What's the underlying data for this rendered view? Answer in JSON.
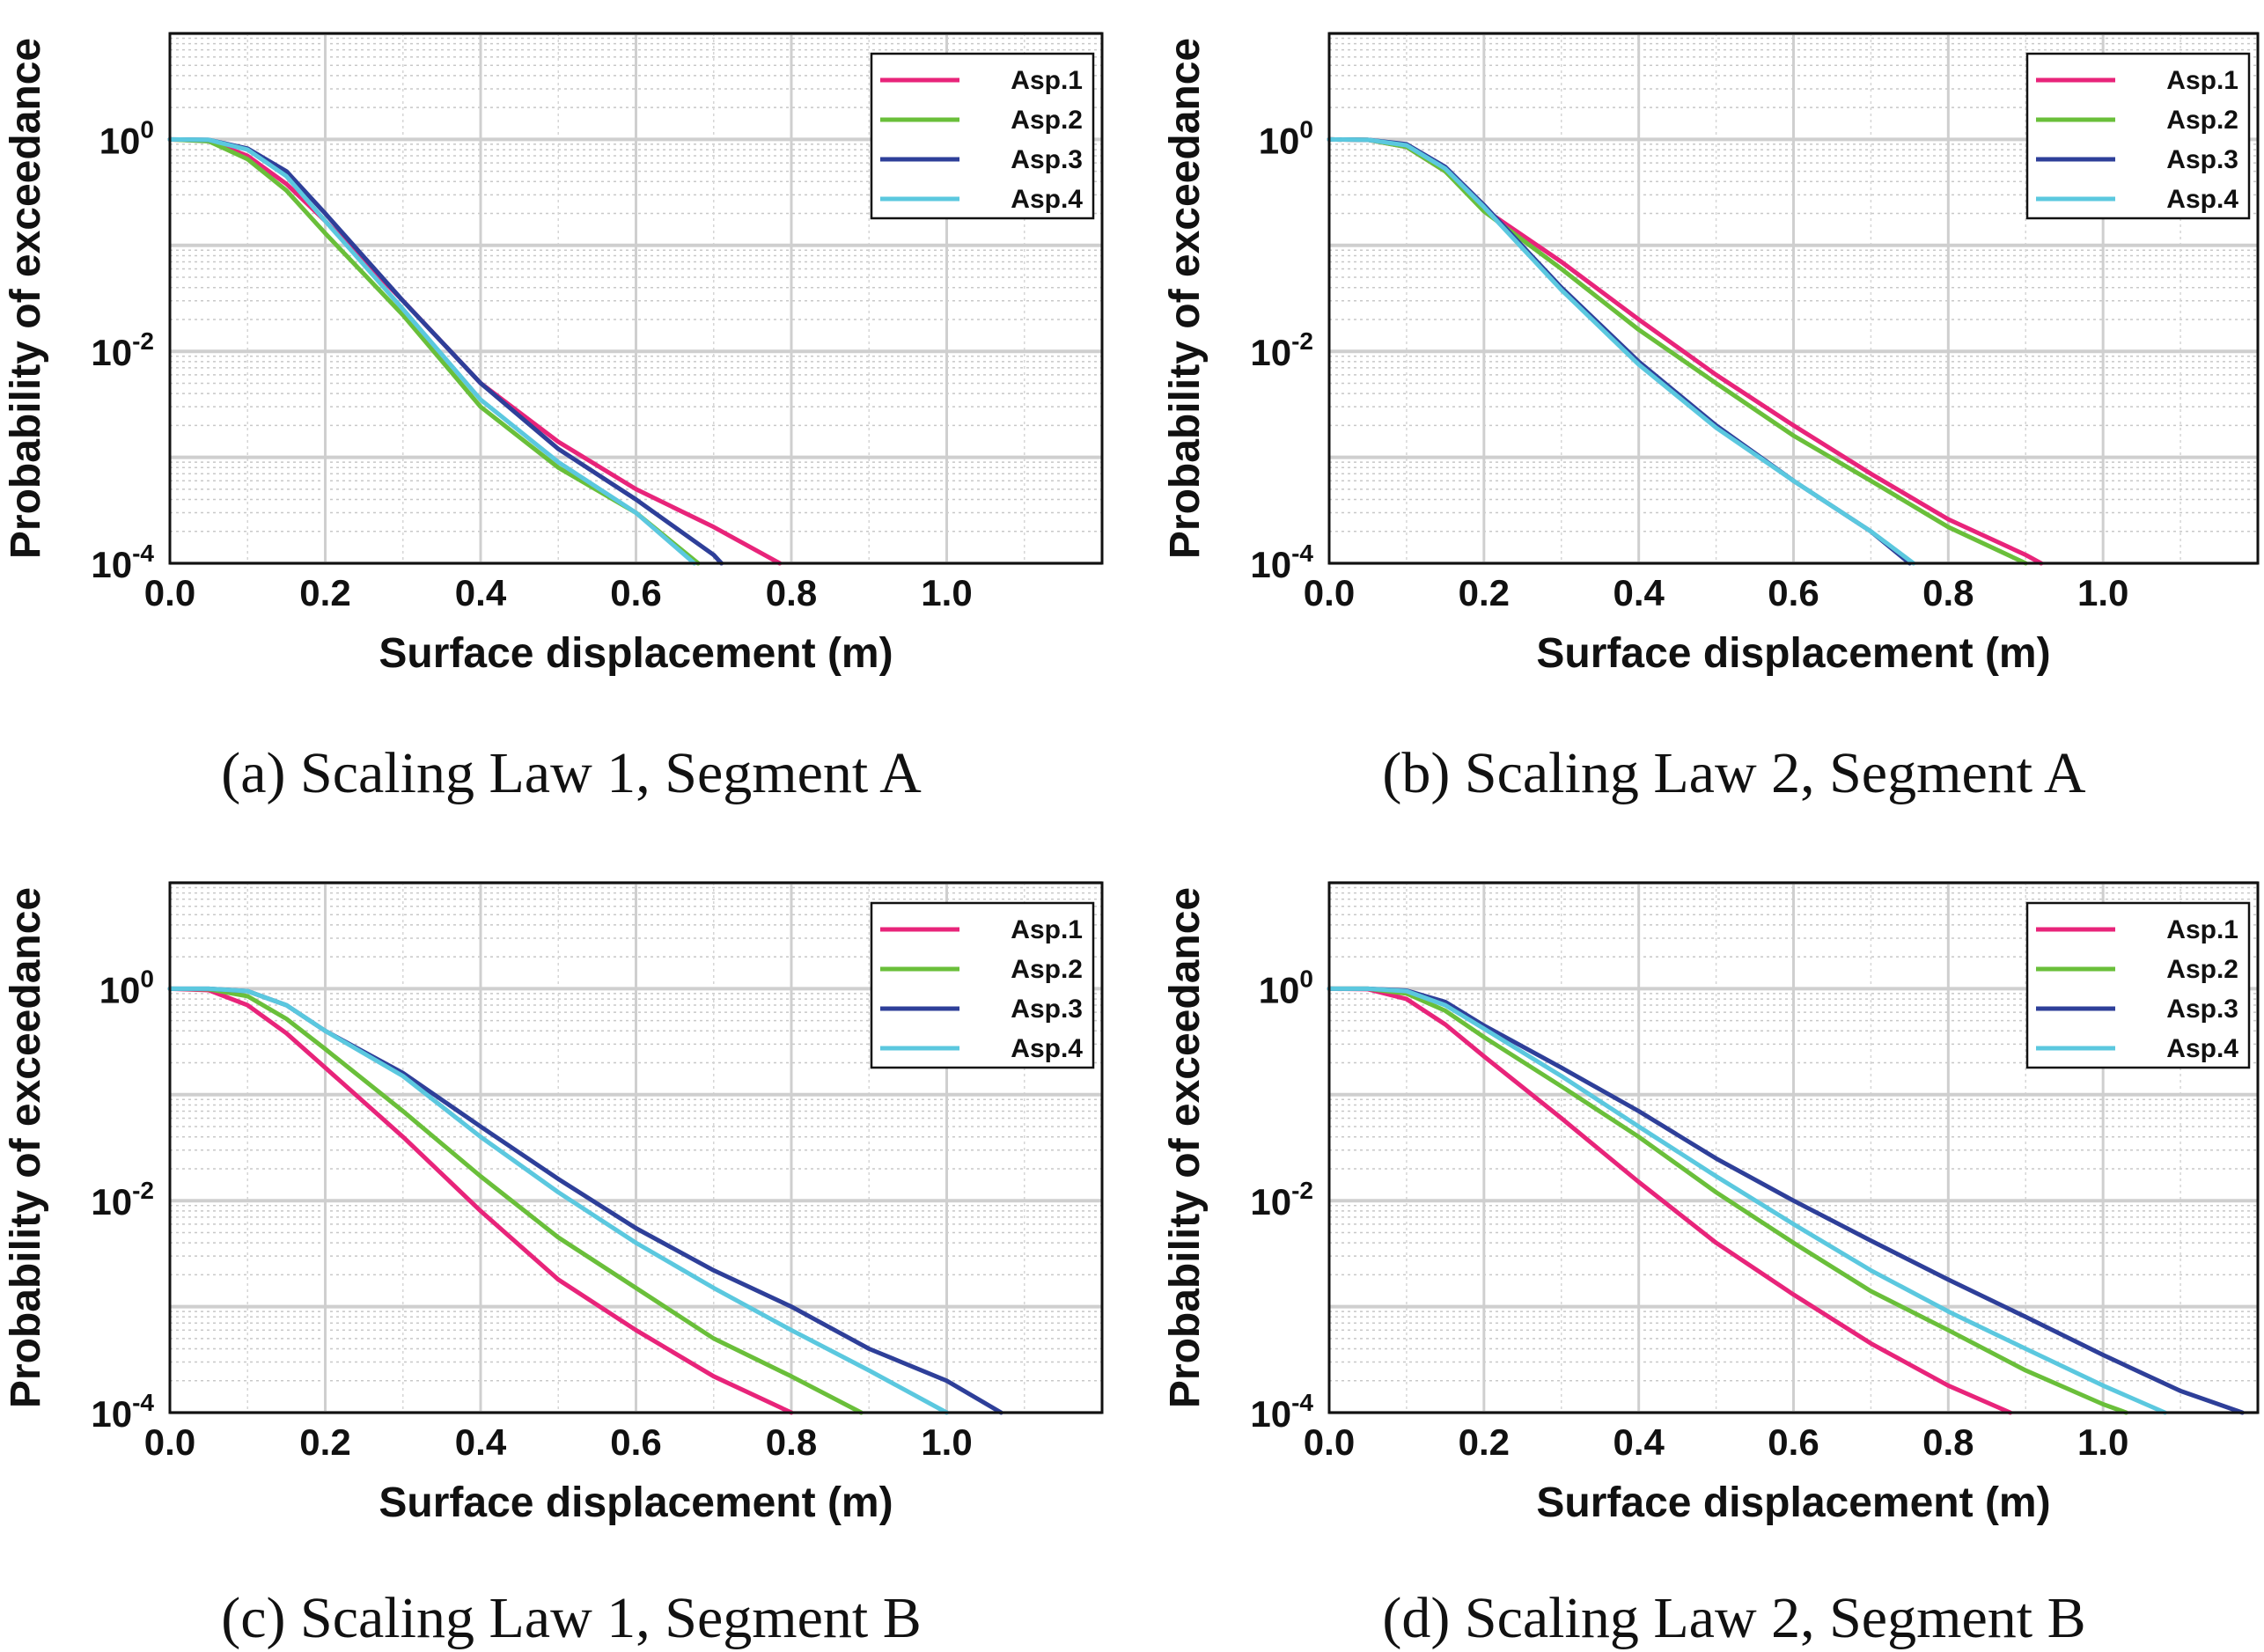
{
  "figure": {
    "captions": [
      "(a) Scaling Law 1, Segment A",
      "(b) Scaling Law 2, Segment A",
      "(c) Scaling Law 1, Segment B",
      "(d) Scaling Law 2, Segment B"
    ]
  },
  "chart_data": [
    {
      "type": "line",
      "panel": "a",
      "caption": "(a) Scaling Law 1, Segment A",
      "xlabel": "Surface displacement (m)",
      "ylabel": "Probability of exceedance",
      "xlim": [
        0,
        1.2
      ],
      "ylim": [
        0.0001,
        10
      ],
      "yscale": "log",
      "xticks": [
        0,
        0.2,
        0.4,
        0.6,
        0.8,
        1.0
      ],
      "xticklabels": [
        "0.0",
        "0.2",
        "0.4",
        "0.6",
        "0.8",
        "1.0"
      ],
      "yticks": [
        {
          "base": "10",
          "exp": "-4",
          "value": 0.0001
        },
        {
          "base": "10",
          "exp": "-2",
          "value": 0.01
        },
        {
          "base": "10",
          "exp": "0",
          "value": 1
        }
      ],
      "grid": true,
      "legend_position": "top-right",
      "series": [
        {
          "name": "Asp.1",
          "color": "#e8247a",
          "x": [
            0,
            0.05,
            0.1,
            0.15,
            0.2,
            0.3,
            0.4,
            0.5,
            0.6,
            0.7,
            0.785
          ],
          "y": [
            1,
            0.97,
            0.7,
            0.38,
            0.17,
            0.03,
            0.005,
            0.0014,
            0.0005,
            0.00022,
            0.0001
          ]
        },
        {
          "name": "Asp.2",
          "color": "#6abf3a",
          "x": [
            0,
            0.05,
            0.1,
            0.15,
            0.2,
            0.3,
            0.4,
            0.5,
            0.6,
            0.68
          ],
          "y": [
            1,
            0.96,
            0.65,
            0.33,
            0.13,
            0.022,
            0.003,
            0.0008,
            0.0003,
            0.0001
          ]
        },
        {
          "name": "Asp.3",
          "color": "#2e3f99",
          "x": [
            0,
            0.05,
            0.1,
            0.15,
            0.2,
            0.3,
            0.4,
            0.5,
            0.6,
            0.7,
            0.71
          ],
          "y": [
            1,
            0.99,
            0.82,
            0.5,
            0.2,
            0.03,
            0.005,
            0.0012,
            0.0004,
            0.00012,
            0.0001
          ]
        },
        {
          "name": "Asp.4",
          "color": "#5bc8df",
          "x": [
            0,
            0.05,
            0.1,
            0.15,
            0.2,
            0.3,
            0.4,
            0.5,
            0.6,
            0.675
          ],
          "y": [
            1,
            0.99,
            0.8,
            0.45,
            0.17,
            0.025,
            0.0035,
            0.0009,
            0.0003,
            0.0001
          ]
        }
      ]
    },
    {
      "type": "line",
      "panel": "b",
      "caption": "(b) Scaling Law 2, Segment A",
      "xlabel": "Surface displacement (m)",
      "ylabel": "Probability of exceedance",
      "xlim": [
        0,
        1.2
      ],
      "ylim": [
        0.0001,
        10
      ],
      "yscale": "log",
      "xticks": [
        0,
        0.2,
        0.4,
        0.6,
        0.8,
        1.0
      ],
      "xticklabels": [
        "0.0",
        "0.2",
        "0.4",
        "0.6",
        "0.8",
        "1.0"
      ],
      "yticks": [
        {
          "base": "10",
          "exp": "-4",
          "value": 0.0001
        },
        {
          "base": "10",
          "exp": "-2",
          "value": 0.01
        },
        {
          "base": "10",
          "exp": "0",
          "value": 1
        }
      ],
      "grid": true,
      "legend_position": "top-right",
      "series": [
        {
          "name": "Asp.1",
          "color": "#e8247a",
          "x": [
            0,
            0.05,
            0.1,
            0.15,
            0.2,
            0.3,
            0.4,
            0.5,
            0.6,
            0.7,
            0.8,
            0.9,
            0.92
          ],
          "y": [
            1,
            0.99,
            0.85,
            0.5,
            0.22,
            0.07,
            0.02,
            0.006,
            0.002,
            0.0007,
            0.00026,
            0.00012,
            0.0001
          ]
        },
        {
          "name": "Asp.2",
          "color": "#6abf3a",
          "x": [
            0,
            0.05,
            0.1,
            0.15,
            0.2,
            0.3,
            0.4,
            0.5,
            0.6,
            0.7,
            0.8,
            0.9
          ],
          "y": [
            1,
            0.99,
            0.85,
            0.5,
            0.21,
            0.06,
            0.016,
            0.005,
            0.0016,
            0.0006,
            0.00022,
            0.0001
          ]
        },
        {
          "name": "Asp.3",
          "color": "#2e3f99",
          "x": [
            0,
            0.05,
            0.1,
            0.15,
            0.2,
            0.3,
            0.4,
            0.5,
            0.6,
            0.7,
            0.75
          ],
          "y": [
            1,
            0.99,
            0.9,
            0.55,
            0.24,
            0.04,
            0.008,
            0.002,
            0.0006,
            0.0002,
            0.0001
          ]
        },
        {
          "name": "Asp.4",
          "color": "#5bc8df",
          "x": [
            0,
            0.05,
            0.1,
            0.15,
            0.2,
            0.3,
            0.4,
            0.5,
            0.6,
            0.7,
            0.755
          ],
          "y": [
            1,
            0.99,
            0.88,
            0.53,
            0.23,
            0.038,
            0.0075,
            0.0019,
            0.0006,
            0.0002,
            0.0001
          ]
        }
      ]
    },
    {
      "type": "line",
      "panel": "c",
      "caption": "(c) Scaling Law 1, Segment B",
      "xlabel": "Surface displacement (m)",
      "ylabel": "Probability of exceedance",
      "xlim": [
        0,
        1.2
      ],
      "ylim": [
        0.0001,
        10
      ],
      "yscale": "log",
      "xticks": [
        0,
        0.2,
        0.4,
        0.6,
        0.8,
        1.0
      ],
      "xticklabels": [
        "0.0",
        "0.2",
        "0.4",
        "0.6",
        "0.8",
        "1.0"
      ],
      "yticks": [
        {
          "base": "10",
          "exp": "-4",
          "value": 0.0001
        },
        {
          "base": "10",
          "exp": "-2",
          "value": 0.01
        },
        {
          "base": "10",
          "exp": "0",
          "value": 1
        }
      ],
      "grid": true,
      "legend_position": "top-right",
      "series": [
        {
          "name": "Asp.1",
          "color": "#e8247a",
          "x": [
            0,
            0.05,
            0.1,
            0.15,
            0.2,
            0.3,
            0.4,
            0.5,
            0.6,
            0.7,
            0.8
          ],
          "y": [
            1,
            0.97,
            0.7,
            0.38,
            0.18,
            0.04,
            0.008,
            0.0018,
            0.0006,
            0.00022,
            0.0001
          ]
        },
        {
          "name": "Asp.2",
          "color": "#6abf3a",
          "x": [
            0,
            0.05,
            0.1,
            0.15,
            0.2,
            0.3,
            0.4,
            0.5,
            0.6,
            0.7,
            0.8,
            0.89
          ],
          "y": [
            1,
            0.99,
            0.85,
            0.52,
            0.27,
            0.07,
            0.017,
            0.0045,
            0.0015,
            0.0005,
            0.00022,
            0.0001
          ]
        },
        {
          "name": "Asp.3",
          "color": "#2e3f99",
          "x": [
            0,
            0.05,
            0.1,
            0.15,
            0.2,
            0.3,
            0.4,
            0.5,
            0.6,
            0.7,
            0.8,
            0.9,
            1.0,
            1.07
          ],
          "y": [
            1,
            1,
            0.95,
            0.7,
            0.4,
            0.16,
            0.05,
            0.016,
            0.0055,
            0.0022,
            0.001,
            0.0004,
            0.0002,
            0.0001
          ]
        },
        {
          "name": "Asp.4",
          "color": "#5bc8df",
          "x": [
            0,
            0.05,
            0.1,
            0.15,
            0.2,
            0.3,
            0.4,
            0.5,
            0.6,
            0.7,
            0.8,
            0.9,
            1.0
          ],
          "y": [
            1,
            1,
            0.95,
            0.7,
            0.4,
            0.15,
            0.04,
            0.012,
            0.004,
            0.0015,
            0.0006,
            0.00025,
            0.0001
          ]
        }
      ]
    },
    {
      "type": "line",
      "panel": "d",
      "caption": "(d) Scaling Law 2, Segment B",
      "xlabel": "Surface displacement (m)",
      "ylabel": "Probability of exceedance",
      "xlim": [
        0,
        1.2
      ],
      "ylim": [
        0.0001,
        10
      ],
      "yscale": "log",
      "xticks": [
        0,
        0.2,
        0.4,
        0.6,
        0.8,
        1.0
      ],
      "xticklabels": [
        "0.0",
        "0.2",
        "0.4",
        "0.6",
        "0.8",
        "1.0"
      ],
      "yticks": [
        {
          "base": "10",
          "exp": "-4",
          "value": 0.0001
        },
        {
          "base": "10",
          "exp": "-2",
          "value": 0.01
        },
        {
          "base": "10",
          "exp": "0",
          "value": 1
        }
      ],
      "grid": true,
      "legend_position": "top-right",
      "series": [
        {
          "name": "Asp.1",
          "color": "#e8247a",
          "x": [
            0,
            0.05,
            0.1,
            0.15,
            0.2,
            0.3,
            0.4,
            0.5,
            0.6,
            0.7,
            0.8,
            0.88
          ],
          "y": [
            1,
            0.99,
            0.8,
            0.46,
            0.23,
            0.06,
            0.015,
            0.004,
            0.0013,
            0.00045,
            0.00018,
            0.0001
          ]
        },
        {
          "name": "Asp.2",
          "color": "#6abf3a",
          "x": [
            0,
            0.05,
            0.1,
            0.15,
            0.2,
            0.3,
            0.4,
            0.5,
            0.6,
            0.7,
            0.8,
            0.9,
            1.0,
            1.03
          ],
          "y": [
            1,
            1,
            0.9,
            0.62,
            0.35,
            0.12,
            0.04,
            0.012,
            0.004,
            0.0014,
            0.0006,
            0.00025,
            0.00012,
            0.0001
          ]
        },
        {
          "name": "Asp.3",
          "color": "#2e3f99",
          "x": [
            0,
            0.05,
            0.1,
            0.15,
            0.2,
            0.3,
            0.4,
            0.5,
            0.6,
            0.7,
            0.8,
            0.9,
            1.0,
            1.1,
            1.18
          ],
          "y": [
            1,
            1,
            0.96,
            0.75,
            0.45,
            0.18,
            0.07,
            0.025,
            0.01,
            0.0042,
            0.0018,
            0.0008,
            0.00035,
            0.00016,
            0.0001
          ]
        },
        {
          "name": "Asp.4",
          "color": "#5bc8df",
          "x": [
            0,
            0.05,
            0.1,
            0.15,
            0.2,
            0.3,
            0.4,
            0.5,
            0.6,
            0.7,
            0.8,
            0.9,
            1.0,
            1.08
          ],
          "y": [
            1,
            1,
            0.95,
            0.7,
            0.42,
            0.15,
            0.05,
            0.017,
            0.006,
            0.0022,
            0.0009,
            0.0004,
            0.00018,
            0.0001
          ]
        }
      ]
    }
  ]
}
